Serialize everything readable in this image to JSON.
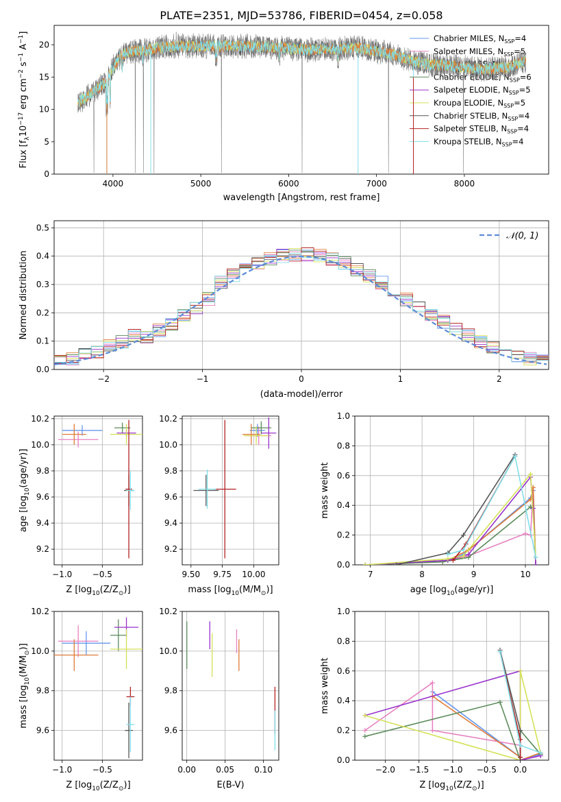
{
  "figure_title": "PLATE=2351, MJD=53786, FIBERID=0454, z=0.058",
  "series": [
    {
      "name": "Chabrier MILES, N",
      "sub": "SSP",
      "suffix": "=4",
      "color": "#6495ed"
    },
    {
      "name": "Salpeter MILES, N",
      "sub": "SSP",
      "suffix": "=5",
      "color": "#e881c1"
    },
    {
      "name": "Kroupa MILES, N",
      "sub": "SSP",
      "suffix": "=4",
      "color": "#e07b39"
    },
    {
      "name": "Chabrier ELODIE, N",
      "sub": "SSP",
      "suffix": "=6",
      "color": "#5a8a5a"
    },
    {
      "name": "Salpeter ELODIE, N",
      "sub": "SSP",
      "suffix": "=5",
      "color": "#9932cc"
    },
    {
      "name": "Kroupa ELODIE, N",
      "sub": "SSP",
      "suffix": "=5",
      "color": "#d4e157"
    },
    {
      "name": "Chabrier STELIB, N",
      "sub": "SSP",
      "suffix": "=4",
      "color": "#555555"
    },
    {
      "name": "Salpeter STELIB, N",
      "sub": "SSP",
      "suffix": "=4",
      "color": "#b22222"
    },
    {
      "name": "Kroupa STELIB, N",
      "sub": "SSP",
      "suffix": "=4",
      "color": "#80deea"
    }
  ],
  "chart_data": [
    {
      "id": "spectrum",
      "type": "line",
      "xlabel": "wavelength [Angstrom, rest frame]",
      "ylabel": "Flux [f",
      "ylabel_sub": "λ",
      "ylabel_rest": "10",
      "ylabel_sup": "−17",
      "ylabel_tail": " erg cm",
      "ylabel_sup2": "−2",
      "ylabel_tail2": " s",
      "ylabel_sup3": "−1",
      "ylabel_tail3": " A",
      "ylabel_sup4": "−1",
      "ylabel_end": "]",
      "xlim": [
        3330,
        8960
      ],
      "ylim": [
        0,
        23
      ],
      "xticks": [
        4000,
        5000,
        6000,
        7000,
        8000
      ],
      "yticks": [
        0,
        5,
        10,
        15,
        20
      ],
      "legend_position": "top-right",
      "continuum": [
        [
          3600,
          11
        ],
        [
          3700,
          12
        ],
        [
          3800,
          13
        ],
        [
          3900,
          14
        ],
        [
          4000,
          16.5
        ],
        [
          4100,
          18.5
        ],
        [
          4200,
          19
        ],
        [
          4300,
          19
        ],
        [
          4400,
          19.2
        ],
        [
          4500,
          19.5
        ],
        [
          4700,
          19.8
        ],
        [
          5000,
          19.8
        ],
        [
          5300,
          19.8
        ],
        [
          5600,
          19.8
        ],
        [
          5900,
          19.6
        ],
        [
          6200,
          19.2
        ],
        [
          6500,
          19.4
        ],
        [
          6800,
          19.5
        ],
        [
          7000,
          19
        ],
        [
          7200,
          18.5
        ],
        [
          7400,
          17.5
        ],
        [
          7600,
          17
        ],
        [
          7800,
          16.8
        ],
        [
          8000,
          16.5
        ],
        [
          8200,
          16.2
        ],
        [
          8500,
          16.5
        ],
        [
          8700,
          17.5
        ]
      ],
      "spikes": [
        [
          3930,
          0
        ],
        [
          4430,
          0
        ],
        [
          6790,
          0
        ],
        [
          7420,
          0
        ],
        [
          4720,
          22
        ],
        [
          4750,
          21.5
        ]
      ]
    },
    {
      "id": "residuals",
      "type": "histogram",
      "xlabel": "(data-model)/error",
      "ylabel": "Normed distribution",
      "xlim": [
        -2.5,
        2.5
      ],
      "ylim": [
        0,
        0.525
      ],
      "xticks": [
        -2,
        -1,
        0,
        1,
        2
      ],
      "yticks": [
        0.0,
        0.1,
        0.2,
        0.3,
        0.4,
        0.5
      ],
      "bin_width": 0.125,
      "reference_label": "𝒩(0, 1)",
      "reference_color": "#5b8bd6",
      "legend_position": "top-right"
    },
    {
      "id": "age-vs-Z",
      "type": "errorbar",
      "xlabel": "Z [log",
      "xlabel_sub": "10",
      "xlabel_rest": "(Z/Z",
      "xlabel_sub2": "⊙",
      "xlabel_end": ")]",
      "ylabel": "age  [log",
      "ylabel_sub": "10",
      "ylabel_rest": "(age/yr)]",
      "xlim": [
        -1.1,
        -0.0
      ],
      "ylim": [
        9.08,
        10.22
      ],
      "xticks": [
        -1.0,
        -0.5
      ],
      "yticks": [
        9.2,
        9.4,
        9.6,
        9.8,
        10.0,
        10.2
      ],
      "points": [
        {
          "x": -0.75,
          "y": 10.11,
          "xerr": 0.25,
          "yerr": 0.04,
          "s": 0
        },
        {
          "x": -0.8,
          "y": 10.04,
          "xerr": 0.25,
          "yerr": 0.06,
          "s": 1
        },
        {
          "x": -0.85,
          "y": 10.08,
          "xerr": 0.15,
          "yerr": 0.08,
          "s": 2
        },
        {
          "x": -0.25,
          "y": 10.13,
          "xerr": 0.1,
          "yerr": 0.04,
          "s": 3
        },
        {
          "x": -0.2,
          "y": 10.09,
          "xerr": 0.12,
          "yerr": 0.03,
          "s": 4
        },
        {
          "x": -0.2,
          "y": 10.08,
          "xerr": 0.2,
          "yerr": 0.08,
          "s": 5
        },
        {
          "x": -0.17,
          "y": 9.65,
          "xerr": 0.06,
          "yerr": 0.12,
          "s": 6
        },
        {
          "x": -0.17,
          "y": 9.66,
          "xerr": 0.04,
          "yerr": 0.53,
          "s": 7
        },
        {
          "x": -0.15,
          "y": 9.65,
          "xerr": 0.05,
          "yerr": 0.15,
          "s": 8
        }
      ]
    },
    {
      "id": "age-vs-mass",
      "type": "errorbar",
      "xlabel": "mass [log",
      "xlabel_sub": "10",
      "xlabel_rest": "(M/M",
      "xlabel_sub2": "⊙",
      "xlabel_end": ")]",
      "xlim": [
        9.43,
        10.2
      ],
      "ylim": [
        9.08,
        10.22
      ],
      "xticks": [
        9.5,
        9.75,
        10.0
      ],
      "yticks": [
        9.2,
        9.4,
        9.6,
        9.8,
        10.0,
        10.2
      ],
      "points": [
        {
          "x": 10.03,
          "y": 10.11,
          "xerr": 0.06,
          "yerr": 0.05,
          "s": 0
        },
        {
          "x": 10.04,
          "y": 10.07,
          "xerr": 0.1,
          "yerr": 0.07,
          "s": 1
        },
        {
          "x": 9.98,
          "y": 10.08,
          "xerr": 0.07,
          "yerr": 0.08,
          "s": 2
        },
        {
          "x": 10.06,
          "y": 10.13,
          "xerr": 0.08,
          "yerr": 0.05,
          "s": 3
        },
        {
          "x": 10.12,
          "y": 10.09,
          "xerr": 0.06,
          "yerr": 0.12,
          "s": 4
        },
        {
          "x": 10.02,
          "y": 10.07,
          "xerr": 0.1,
          "yerr": 0.07,
          "s": 5
        },
        {
          "x": 9.62,
          "y": 9.65,
          "xerr": 0.1,
          "yerr": 0.12,
          "s": 6
        },
        {
          "x": 9.77,
          "y": 9.66,
          "xerr": 0.09,
          "yerr": 0.53,
          "s": 7
        },
        {
          "x": 9.63,
          "y": 9.66,
          "xerr": 0.07,
          "yerr": 0.15,
          "s": 8
        }
      ]
    },
    {
      "id": "weight-vs-age",
      "type": "line",
      "xlabel": "age  [log",
      "xlabel_sub": "10",
      "xlabel_rest": "(age/yr)]",
      "ylabel": "mass weight",
      "xlim": [
        6.7,
        10.45
      ],
      "ylim": [
        0,
        1.0
      ],
      "xticks": [
        7,
        8,
        9,
        10
      ],
      "yticks": [
        0.0,
        0.2,
        0.4,
        0.6,
        0.8,
        1.0
      ],
      "lines": [
        {
          "s": 0,
          "pts": [
            [
              6.9,
              0.0
            ],
            [
              8.5,
              0.03
            ],
            [
              8.8,
              0.07
            ],
            [
              10.1,
              0.45
            ],
            [
              10.15,
              0.5
            ],
            [
              10.2,
              0.0
            ]
          ]
        },
        {
          "s": 1,
          "pts": [
            [
              6.9,
              0.0
            ],
            [
              8.4,
              0.02
            ],
            [
              8.9,
              0.06
            ],
            [
              10.0,
              0.21
            ],
            [
              10.1,
              0.2
            ],
            [
              10.15,
              0.52
            ],
            [
              10.2,
              0.0
            ]
          ]
        },
        {
          "s": 2,
          "pts": [
            [
              6.9,
              0.0
            ],
            [
              8.5,
              0.03
            ],
            [
              8.9,
              0.1
            ],
            [
              10.1,
              0.44
            ],
            [
              10.15,
              0.52
            ],
            [
              10.2,
              0.0
            ]
          ]
        },
        {
          "s": 3,
          "pts": [
            [
              6.9,
              0.0
            ],
            [
              8.4,
              0.02
            ],
            [
              8.9,
              0.05
            ],
            [
              10.1,
              0.39
            ],
            [
              10.15,
              0.38
            ],
            [
              10.2,
              0.0
            ]
          ]
        },
        {
          "s": 4,
          "pts": [
            [
              6.9,
              0.0
            ],
            [
              8.5,
              0.03
            ],
            [
              8.9,
              0.07
            ],
            [
              10.1,
              0.59
            ],
            [
              10.15,
              0.38
            ],
            [
              10.2,
              0.0
            ]
          ]
        },
        {
          "s": 5,
          "pts": [
            [
              6.9,
              0.0
            ],
            [
              8.5,
              0.04
            ],
            [
              8.8,
              0.06
            ],
            [
              10.1,
              0.61
            ],
            [
              10.2,
              0.05
            ]
          ]
        },
        {
          "s": 6,
          "pts": [
            [
              7.5,
              0.0
            ],
            [
              8.5,
              0.08
            ],
            [
              8.8,
              0.2
            ],
            [
              9.8,
              0.74
            ]
          ]
        },
        {
          "s": 7,
          "pts": [
            [
              8.6,
              0.03
            ],
            [
              8.85,
              0.14
            ],
            [
              9.8,
              0.73
            ]
          ]
        },
        {
          "s": 8,
          "pts": [
            [
              8.5,
              0.07
            ],
            [
              8.8,
              0.1
            ],
            [
              9.8,
              0.73
            ],
            [
              10.2,
              0.05
            ]
          ]
        }
      ]
    },
    {
      "id": "mass-vs-Z",
      "type": "errorbar",
      "xlabel": "Z [log",
      "xlabel_sub": "10",
      "xlabel_rest": "(Z/Z",
      "xlabel_sub2": "⊙",
      "xlabel_end": ")]",
      "ylabel": "mass [log",
      "ylabel_sub": "10",
      "ylabel_rest": "(M/M",
      "ylabel_sub2": "⊙",
      "ylabel_end": ")]",
      "xlim": [
        -1.1,
        -0.0
      ],
      "ylim": [
        9.45,
        10.2
      ],
      "xticks": [
        -1.0,
        -0.5
      ],
      "yticks": [
        9.6,
        9.8,
        10.0,
        10.2
      ],
      "points": [
        {
          "x": -0.7,
          "y": 10.04,
          "xerr": 0.3,
          "yerr": 0.06,
          "s": 0
        },
        {
          "x": -0.8,
          "y": 10.05,
          "xerr": 0.25,
          "yerr": 0.08,
          "s": 1
        },
        {
          "x": -0.85,
          "y": 9.98,
          "xerr": 0.3,
          "yerr": 0.08,
          "s": 2
        },
        {
          "x": -0.3,
          "y": 10.08,
          "xerr": 0.1,
          "yerr": 0.08,
          "s": 3
        },
        {
          "x": -0.2,
          "y": 10.12,
          "xerr": 0.15,
          "yerr": 0.05,
          "s": 4
        },
        {
          "x": -0.2,
          "y": 10.01,
          "xerr": 0.2,
          "yerr": 0.1,
          "s": 5
        },
        {
          "x": -0.17,
          "y": 9.6,
          "xerr": 0.05,
          "yerr": 0.14,
          "s": 6
        },
        {
          "x": -0.15,
          "y": 9.77,
          "xerr": 0.05,
          "yerr": 0.05,
          "s": 7
        },
        {
          "x": -0.15,
          "y": 9.63,
          "xerr": 0.05,
          "yerr": 0.14,
          "s": 8
        }
      ]
    },
    {
      "id": "mass-vs-ebv",
      "type": "errorbar",
      "xlabel": "E(B-V)",
      "xlim": [
        -0.006,
        0.12
      ],
      "ylim": [
        9.45,
        10.2
      ],
      "xticks": [
        0.0,
        0.05,
        0.1
      ],
      "yticks": [
        9.6,
        9.8,
        10.0,
        10.2
      ],
      "points": [
        {
          "x": 0.0,
          "y": 10.03,
          "xerr": 0.0,
          "yerr": 0.12,
          "s": 3
        },
        {
          "x": 0.03,
          "y": 10.08,
          "xerr": 0.0,
          "yerr": 0.07,
          "s": 4
        },
        {
          "x": 0.033,
          "y": 9.98,
          "xerr": 0.0,
          "yerr": 0.11,
          "s": 5
        },
        {
          "x": 0.065,
          "y": 10.05,
          "xerr": 0.0,
          "yerr": 0.06,
          "s": 1
        },
        {
          "x": 0.068,
          "y": 9.98,
          "xerr": 0.0,
          "yerr": 0.08,
          "s": 2
        },
        {
          "x": 0.115,
          "y": 9.7,
          "xerr": 0.0,
          "yerr": 0.12,
          "s": 7
        },
        {
          "x": 0.115,
          "y": 9.6,
          "xerr": 0.0,
          "yerr": 0.1,
          "s": 8
        }
      ]
    },
    {
      "id": "weight-vs-Z",
      "type": "line",
      "xlabel": "Z [log",
      "xlabel_sub": "10",
      "xlabel_rest": "(Z/Z",
      "xlabel_sub2": "⊙",
      "xlabel_end": ")]",
      "ylabel": "mass weight",
      "xlim": [
        -2.45,
        0.42
      ],
      "ylim": [
        0,
        1.0
      ],
      "xticks": [
        -2.0,
        -1.5,
        -1.0,
        -0.5,
        0.0
      ],
      "yticks": [
        0.0,
        0.2,
        0.4,
        0.6,
        0.8,
        1.0
      ],
      "lines": [
        {
          "s": 0,
          "pts": [
            [
              -1.3,
              0.46
            ],
            [
              0.0,
              0.02
            ],
            [
              0.0,
              0.0
            ],
            [
              0.3,
              0.04
            ]
          ]
        },
        {
          "s": 1,
          "pts": [
            [
              -2.3,
              0.2
            ],
            [
              -1.3,
              0.52
            ],
            [
              -1.3,
              0.2
            ],
            [
              0.0,
              0.1
            ],
            [
              0.0,
              0.0
            ],
            [
              0.3,
              0.03
            ]
          ]
        },
        {
          "s": 2,
          "pts": [
            [
              -1.3,
              0.43
            ],
            [
              0.0,
              0.02
            ],
            [
              0.0,
              0.0
            ],
            [
              0.3,
              0.05
            ]
          ]
        },
        {
          "s": 3,
          "pts": [
            [
              -2.3,
              0.16
            ],
            [
              -0.3,
              0.39
            ],
            [
              0.0,
              0.0
            ],
            [
              0.0,
              0.2
            ],
            [
              0.3,
              0.04
            ]
          ]
        },
        {
          "s": 4,
          "pts": [
            [
              -2.3,
              0.3
            ],
            [
              0.0,
              0.6
            ],
            [
              0.0,
              0.0
            ],
            [
              0.3,
              0.03
            ]
          ]
        },
        {
          "s": 5,
          "pts": [
            [
              -2.3,
              0.3
            ],
            [
              0.0,
              0.0
            ],
            [
              0.0,
              0.6
            ],
            [
              0.3,
              0.05
            ]
          ]
        },
        {
          "s": 6,
          "pts": [
            [
              -0.3,
              0.74
            ],
            [
              0.0,
              0.2
            ],
            [
              0.0,
              0.0
            ]
          ]
        },
        {
          "s": 7,
          "pts": [
            [
              -0.3,
              0.73
            ],
            [
              0.0,
              0.14
            ],
            [
              0.0,
              0.02
            ]
          ]
        },
        {
          "s": 8,
          "pts": [
            [
              -0.3,
              0.73
            ],
            [
              0.0,
              0.1
            ],
            [
              0.3,
              0.05
            ]
          ]
        }
      ]
    }
  ]
}
